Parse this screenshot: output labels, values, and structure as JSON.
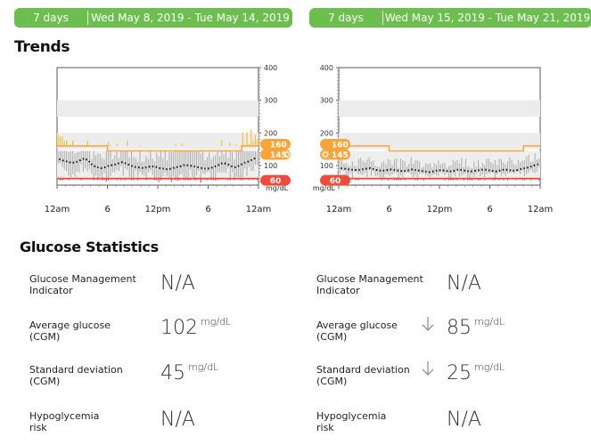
{
  "ranges": [
    {
      "days": "7 days",
      "dates": "Wed May 8, 2019 - Tue May 14, 2019"
    },
    {
      "days": "7 days",
      "dates": "Wed May 15, 2019 - Tue May 21, 2019"
    }
  ],
  "trends_title": "Trends",
  "stats_title": "Glucose Statistics",
  "targets": {
    "night": "160",
    "day": "145",
    "low": "60"
  },
  "colors": {
    "green": "#6cbf4f",
    "orange": "#f7a43a",
    "red": "#ef4b3d",
    "yellow": "#f3c230"
  },
  "icons": {
    "night": "moon-icon",
    "day": "sun-icon"
  },
  "chart_data": [
    {
      "type": "line",
      "title": "",
      "x_ticks": [
        "12am",
        "6",
        "12pm",
        "6",
        "12am"
      ],
      "y_ticks": [
        "400",
        "300",
        "200",
        "100"
      ],
      "y_unit": "mg/dL",
      "y_axis_side": "right",
      "ylim": [
        40,
        400
      ],
      "median": [
        120,
        115,
        112,
        108,
        110,
        116,
        122,
        115,
        100,
        95,
        92,
        95,
        100,
        102,
        106,
        110,
        106,
        100,
        96,
        94,
        92,
        95,
        98,
        96,
        92,
        90,
        88,
        92,
        95,
        98,
        102,
        100,
        98,
        95,
        92,
        90,
        92,
        96,
        102,
        108,
        105,
        98,
        95,
        100,
        108,
        112,
        118,
        124
      ],
      "series": [
        {
          "name": "Glucose Management Indicator",
          "values": []
        }
      ],
      "targets": {
        "night_high": 160,
        "day_high": 145,
        "low": 60
      }
    },
    {
      "type": "line",
      "title": "",
      "x_ticks": [
        "12am",
        "6",
        "12pm",
        "6",
        "12am"
      ],
      "y_ticks": [
        "400",
        "300",
        "200",
        "100"
      ],
      "y_unit": "mg/dL",
      "y_axis_side": "left",
      "ylim": [
        40,
        400
      ],
      "median": [
        92,
        90,
        88,
        87,
        86,
        88,
        90,
        92,
        88,
        85,
        84,
        86,
        88,
        86,
        84,
        83,
        85,
        88,
        86,
        84,
        82,
        80,
        82,
        85,
        86,
        84,
        82,
        84,
        88,
        86,
        83,
        82,
        84,
        86,
        88,
        86,
        84,
        82,
        85,
        88,
        86,
        84,
        86,
        90,
        92,
        95,
        100,
        104
      ],
      "targets": {
        "night_high": 160,
        "day_high": 145,
        "low": 60
      }
    }
  ],
  "stats": [
    {
      "label": "Glucose Management Indicator",
      "left": {
        "value": "N/A",
        "unit": ""
      },
      "right": {
        "value": "N/A",
        "unit": "",
        "trend": ""
      }
    },
    {
      "label": "Average glucose (CGM)",
      "left": {
        "value": "102",
        "unit": "mg/dL"
      },
      "right": {
        "value": "85",
        "unit": "mg/dL",
        "trend": "down-arrow-icon"
      }
    },
    {
      "label": "Standard deviation (CGM)",
      "left": {
        "value": "45",
        "unit": "mg/dL"
      },
      "right": {
        "value": "25",
        "unit": "mg/dL",
        "trend": "down-arrow-icon"
      }
    },
    {
      "label": "Hypoglycemia risk",
      "left": {
        "value": "N/A",
        "unit": ""
      },
      "right": {
        "value": "N/A",
        "unit": "",
        "trend": ""
      }
    }
  ],
  "stat_labels": [
    [
      "Glucose Management",
      "Indicator"
    ],
    [
      "Average glucose",
      "(CGM)"
    ],
    [
      "Standard deviation",
      "(CGM)"
    ],
    [
      "Hypoglycemia",
      "risk"
    ]
  ]
}
